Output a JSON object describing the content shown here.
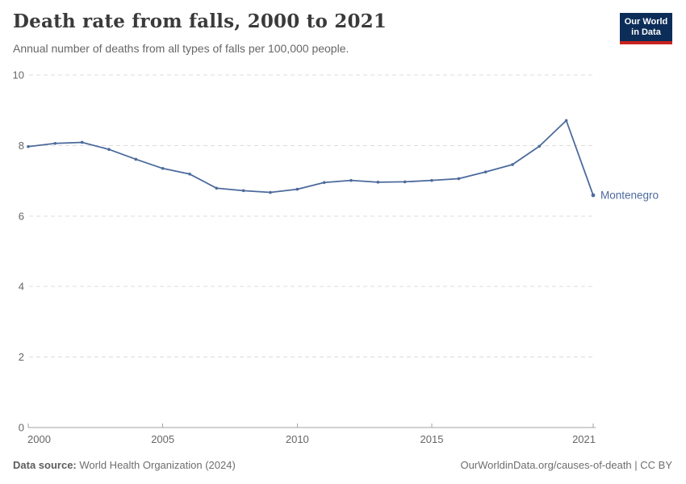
{
  "header": {
    "title": "Death rate from falls, 2000 to 2021",
    "subtitle": "Annual number of deaths from all types of falls per 100,000 people.",
    "logo": {
      "line1": "Our World",
      "line2": "in Data"
    }
  },
  "chart_data": {
    "type": "line",
    "title": "Death rate from falls, 2000 to 2021",
    "xlabel": "",
    "ylabel": "",
    "x": [
      2000,
      2001,
      2002,
      2003,
      2004,
      2005,
      2006,
      2007,
      2008,
      2009,
      2010,
      2011,
      2012,
      2013,
      2014,
      2015,
      2016,
      2017,
      2018,
      2019,
      2020,
      2021
    ],
    "series": [
      {
        "name": "Montenegro",
        "values": [
          7.97,
          8.06,
          8.09,
          7.89,
          7.61,
          7.35,
          7.19,
          6.79,
          6.72,
          6.67,
          6.76,
          6.95,
          7.01,
          6.96,
          6.97,
          7.01,
          7.06,
          7.25,
          7.46,
          7.98,
          8.71,
          6.59
        ]
      }
    ],
    "ylim": [
      0,
      10
    ],
    "y_ticks": [
      0,
      2,
      4,
      6,
      8,
      10
    ],
    "x_ticks": [
      2000,
      2005,
      2010,
      2015,
      2021
    ],
    "grid": "dashed-horizontal",
    "legend_position": "end-of-line-label"
  },
  "footer": {
    "source_label": "Data source:",
    "source_value": " World Health Organization (2024)",
    "credit": "OurWorldinData.org/causes-of-death | CC BY"
  },
  "colors": {
    "line": "#4C6A9C",
    "entity_label": "#4C6A9C",
    "grid": "#dcdcdc",
    "axis": "#a3a3a3",
    "tick_text": "#666666"
  }
}
